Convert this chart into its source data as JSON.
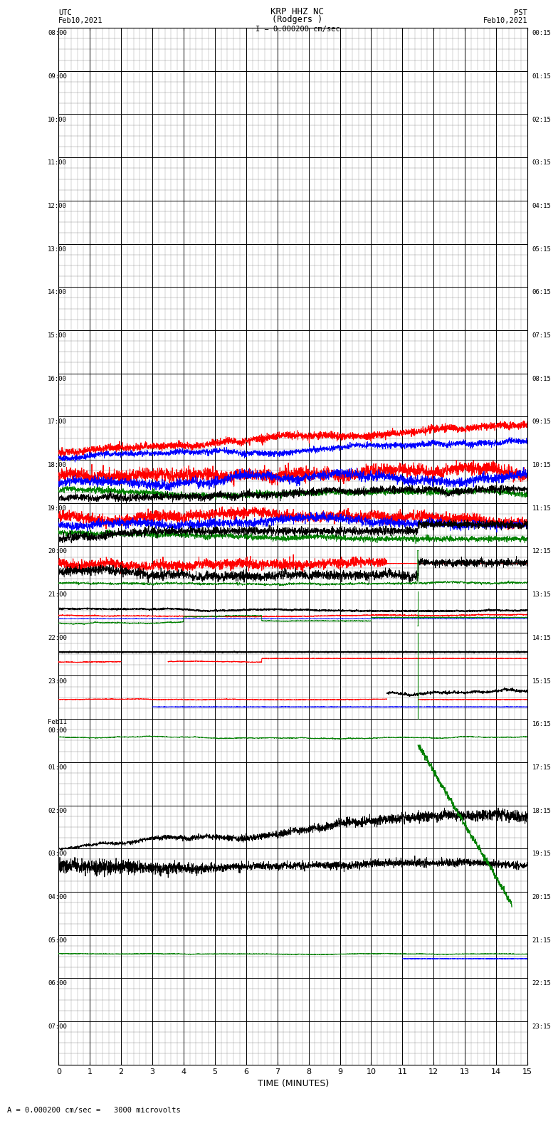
{
  "title_line1": "KRP HHZ NC",
  "title_line2": "(Rodgers )",
  "scale_bar": "I = 0.000200 cm/sec",
  "left_label_top": "UTC",
  "left_label_date": "Feb10,2021",
  "right_label_top": "PST",
  "right_label_date": "Feb10,2021",
  "xlabel": "TIME (MINUTES)",
  "footer": "A = 0.000200 cm/sec =   3000 microvolts",
  "utc_times": [
    "08:00",
    "09:00",
    "10:00",
    "11:00",
    "12:00",
    "13:00",
    "14:00",
    "15:00",
    "16:00",
    "17:00",
    "18:00",
    "19:00",
    "20:00",
    "21:00",
    "22:00",
    "23:00",
    "Feb11\n00:00",
    "01:00",
    "02:00",
    "03:00",
    "04:00",
    "05:00",
    "06:00",
    "07:00"
  ],
  "pst_times": [
    "00:15",
    "01:15",
    "02:15",
    "03:15",
    "04:15",
    "05:15",
    "06:15",
    "07:15",
    "08:15",
    "09:15",
    "10:15",
    "11:15",
    "12:15",
    "13:15",
    "14:15",
    "15:15",
    "16:15",
    "17:15",
    "18:15",
    "19:15",
    "20:15",
    "21:15",
    "22:15",
    "23:15"
  ],
  "n_rows": 24,
  "x_min": 0,
  "x_max": 15,
  "x_ticks": [
    0,
    1,
    2,
    3,
    4,
    5,
    6,
    7,
    8,
    9,
    10,
    11,
    12,
    13,
    14,
    15
  ],
  "bg_color": "#ffffff",
  "major_grid_color": "#000000",
  "minor_grid_color": "#888888",
  "line_colors": {
    "red": "#ff0000",
    "blue": "#0000ff",
    "green": "#008000",
    "black": "#000000"
  }
}
